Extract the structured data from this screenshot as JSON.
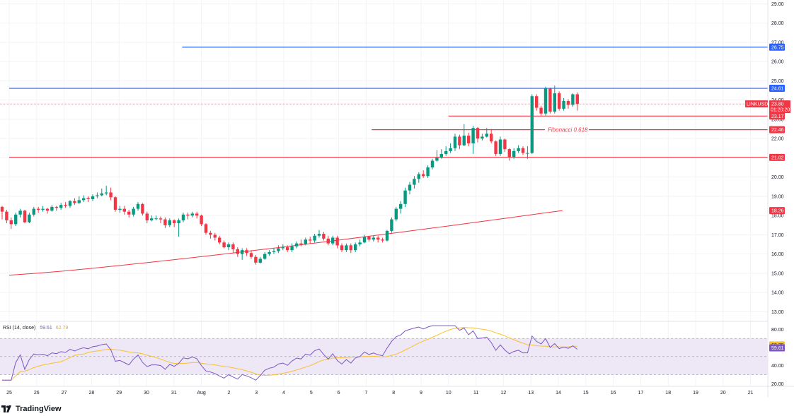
{
  "symbol": "LINKUSDT",
  "branding": "TradingView",
  "colors": {
    "up": "#089981",
    "down": "#f23645",
    "blue_level": "#2962ff",
    "ma": "#f23645",
    "rsi_line": "#7e57c2",
    "rsi_ma": "#fbc02d",
    "rsi_band": "#ede7f6",
    "grid": "#f2f3f5"
  },
  "price_axis": {
    "ticks": [
      "29.00",
      "28.00",
      "27.00",
      "26.00",
      "25.00",
      "24.00",
      "23.00",
      "22.00",
      "21.00",
      "20.00",
      "19.00",
      "18.00",
      "17.00",
      "16.00",
      "15.00",
      "14.00",
      "13.00"
    ]
  },
  "price_badges": [
    {
      "label": "26.75",
      "value": 26.75,
      "color": "#2962ff"
    },
    {
      "label": "24.61",
      "value": 24.61,
      "color": "#2962ff"
    },
    {
      "label": "23.17",
      "value": 23.17,
      "color": "#f23645"
    },
    {
      "label": "22.46",
      "value": 22.46,
      "color": "#f23645"
    },
    {
      "label": "21.02",
      "value": 21.02,
      "color": "#f23645"
    },
    {
      "label": "18.26",
      "value": 18.26,
      "color": "#f23645"
    }
  ],
  "last_price": {
    "symbol": "LINKUSDT",
    "price": "23.80",
    "countdown": "01:20:20",
    "value": 23.8
  },
  "fibonacci_label": "Fibonacci 0.618",
  "time_axis": {
    "labels": [
      "25",
      "26",
      "27",
      "28",
      "29",
      "30",
      "31",
      "Aug",
      "2",
      "3",
      "4",
      "5",
      "6",
      "7",
      "8",
      "9",
      "10",
      "11",
      "12",
      "13",
      "14",
      "15",
      "16",
      "17",
      "18",
      "19",
      "20",
      "21"
    ]
  },
  "rsi": {
    "title": "RSI (14, close)",
    "value": "59.61",
    "ma_value": "62.79",
    "ticks": [
      "80.00",
      "60.00",
      "40.00",
      "20.00"
    ],
    "upper_band": 70,
    "lower_band": 30,
    "middle": 50
  },
  "chart_data": {
    "type": "candlestick",
    "title": "",
    "x_unit": "days",
    "ylim": [
      12.5,
      29.2
    ],
    "levels": [
      {
        "value": 26.75,
        "color": "#2962ff",
        "start_day": 6.3
      },
      {
        "value": 24.61,
        "color": "#2962ff",
        "start_day": 0
      },
      {
        "value": 23.17,
        "color": "#f23645",
        "start_day": 16.0
      },
      {
        "value": 22.46,
        "color": "#f23645",
        "start_day": 13.2,
        "label": "Fibonacci 0.618"
      },
      {
        "value": 21.02,
        "color": "#f23645",
        "start_day": 0
      }
    ],
    "moving_average": {
      "start": {
        "day": 0,
        "value": 14.9
      },
      "end": {
        "day": 20.15,
        "value": 18.26
      }
    },
    "candles": [
      [
        18.45,
        18.2,
        18.5,
        17.8
      ],
      [
        18.2,
        17.75,
        18.3,
        17.6
      ],
      [
        17.75,
        17.55,
        17.9,
        17.3
      ],
      [
        17.55,
        18.05,
        18.15,
        17.45
      ],
      [
        18.05,
        18.25,
        18.35,
        17.9
      ],
      [
        18.25,
        17.65,
        18.3,
        17.6
      ],
      [
        17.65,
        18.05,
        18.15,
        17.6
      ],
      [
        18.05,
        18.35,
        18.45,
        17.95
      ],
      [
        18.35,
        18.3,
        18.45,
        18.15
      ],
      [
        18.3,
        18.35,
        18.5,
        18.2
      ],
      [
        18.35,
        18.25,
        18.4,
        18.1
      ],
      [
        18.25,
        18.45,
        18.55,
        18.2
      ],
      [
        18.45,
        18.4,
        18.5,
        18.25
      ],
      [
        18.4,
        18.55,
        18.65,
        18.3
      ],
      [
        18.55,
        18.5,
        18.7,
        18.4
      ],
      [
        18.5,
        18.75,
        18.8,
        18.4
      ],
      [
        18.75,
        18.65,
        18.9,
        18.55
      ],
      [
        18.65,
        18.8,
        19.0,
        18.6
      ],
      [
        18.8,
        18.9,
        19.05,
        18.7
      ],
      [
        18.9,
        18.85,
        19.0,
        18.7
      ],
      [
        18.85,
        19.0,
        19.1,
        18.75
      ],
      [
        19.0,
        19.05,
        19.2,
        18.9
      ],
      [
        19.05,
        19.15,
        19.4,
        19.0
      ],
      [
        19.15,
        19.2,
        19.55,
        19.05
      ],
      [
        19.2,
        18.95,
        19.45,
        18.8
      ],
      [
        18.95,
        18.3,
        19.0,
        18.2
      ],
      [
        18.3,
        18.35,
        18.5,
        18.15
      ],
      [
        18.35,
        18.2,
        18.5,
        18.05
      ],
      [
        18.2,
        18.05,
        18.3,
        17.9
      ],
      [
        18.05,
        18.35,
        18.45,
        17.95
      ],
      [
        18.35,
        18.6,
        18.7,
        18.25
      ],
      [
        18.6,
        18.1,
        18.65,
        18.0
      ],
      [
        18.1,
        17.75,
        18.2,
        17.6
      ],
      [
        17.75,
        17.85,
        18.0,
        17.7
      ],
      [
        17.85,
        17.85,
        18.0,
        17.75
      ],
      [
        17.85,
        17.8,
        17.95,
        17.6
      ],
      [
        17.8,
        17.5,
        17.9,
        17.35
      ],
      [
        17.5,
        17.75,
        17.85,
        17.4
      ],
      [
        17.75,
        17.6,
        17.8,
        17.4
      ],
      [
        17.6,
        17.75,
        17.85,
        16.9
      ],
      [
        17.75,
        18.05,
        18.15,
        17.65
      ],
      [
        18.05,
        18.0,
        18.15,
        17.8
      ],
      [
        18.0,
        18.1,
        18.2,
        17.9
      ],
      [
        18.1,
        18.0,
        18.2,
        17.85
      ],
      [
        18.0,
        17.55,
        18.05,
        17.45
      ],
      [
        17.55,
        17.1,
        17.6,
        17.0
      ],
      [
        17.1,
        17.0,
        17.2,
        16.8
      ],
      [
        17.0,
        16.85,
        17.1,
        16.7
      ],
      [
        16.85,
        16.6,
        16.95,
        16.5
      ],
      [
        16.6,
        16.35,
        16.7,
        16.3
      ],
      [
        16.35,
        16.5,
        16.6,
        16.2
      ],
      [
        16.5,
        16.25,
        16.6,
        16.05
      ],
      [
        16.25,
        16.0,
        16.35,
        15.85
      ],
      [
        16.0,
        16.2,
        16.3,
        15.7
      ],
      [
        16.2,
        16.05,
        16.3,
        15.9
      ],
      [
        16.05,
        15.85,
        16.2,
        15.75
      ],
      [
        15.85,
        15.55,
        15.95,
        15.45
      ],
      [
        15.55,
        15.75,
        15.85,
        15.5
      ],
      [
        15.75,
        16.0,
        16.1,
        15.7
      ],
      [
        16.0,
        16.1,
        16.2,
        15.9
      ],
      [
        16.1,
        16.15,
        16.3,
        16.0
      ],
      [
        16.15,
        16.3,
        16.45,
        16.05
      ],
      [
        16.3,
        16.35,
        16.5,
        16.2
      ],
      [
        16.35,
        16.2,
        16.45,
        16.1
      ],
      [
        16.2,
        16.4,
        16.55,
        16.1
      ],
      [
        16.4,
        16.55,
        16.65,
        16.3
      ],
      [
        16.55,
        16.5,
        16.75,
        16.4
      ],
      [
        16.5,
        16.75,
        16.85,
        16.45
      ],
      [
        16.75,
        16.7,
        16.9,
        16.55
      ],
      [
        16.7,
        16.95,
        17.05,
        16.6
      ],
      [
        16.95,
        17.05,
        17.25,
        16.85
      ],
      [
        17.05,
        16.8,
        17.15,
        16.7
      ],
      [
        16.8,
        16.55,
        16.95,
        16.45
      ],
      [
        16.55,
        16.85,
        16.95,
        16.45
      ],
      [
        16.85,
        16.45,
        16.95,
        16.3
      ],
      [
        16.45,
        16.2,
        16.55,
        16.1
      ],
      [
        16.2,
        16.45,
        16.55,
        16.1
      ],
      [
        16.45,
        16.2,
        16.55,
        16.05
      ],
      [
        16.2,
        16.5,
        16.6,
        16.1
      ],
      [
        16.5,
        16.6,
        16.75,
        16.4
      ],
      [
        16.6,
        16.9,
        17.0,
        16.55
      ],
      [
        16.9,
        16.75,
        16.95,
        16.65
      ],
      [
        16.75,
        16.85,
        16.95,
        16.65
      ],
      [
        16.85,
        16.75,
        16.95,
        16.6
      ],
      [
        16.75,
        16.7,
        16.85,
        16.6
      ],
      [
        16.7,
        17.2,
        17.25,
        16.65
      ],
      [
        17.2,
        17.8,
        17.9,
        17.1
      ],
      [
        17.8,
        18.35,
        18.45,
        17.7
      ],
      [
        18.35,
        18.6,
        18.75,
        18.1
      ],
      [
        18.6,
        19.3,
        19.45,
        18.45
      ],
      [
        19.3,
        19.6,
        19.75,
        19.1
      ],
      [
        19.6,
        19.9,
        20.05,
        19.4
      ],
      [
        19.9,
        20.15,
        20.25,
        19.7
      ],
      [
        20.15,
        20.05,
        20.35,
        19.95
      ],
      [
        20.05,
        20.5,
        20.6,
        19.95
      ],
      [
        20.5,
        20.85,
        20.95,
        20.4
      ],
      [
        20.85,
        21.0,
        21.4,
        20.8
      ],
      [
        21.0,
        21.2,
        21.45,
        20.95
      ],
      [
        21.2,
        21.35,
        21.6,
        21.1
      ],
      [
        21.35,
        21.5,
        21.75,
        21.25
      ],
      [
        21.5,
        22.1,
        22.25,
        21.35
      ],
      [
        22.1,
        21.65,
        22.2,
        21.45
      ],
      [
        21.65,
        22.15,
        22.75,
        21.6
      ],
      [
        22.15,
        21.75,
        22.3,
        21.6
      ],
      [
        21.75,
        22.55,
        22.65,
        21.2
      ],
      [
        22.55,
        22.0,
        22.6,
        21.8
      ],
      [
        22.0,
        22.1,
        22.25,
        21.9
      ],
      [
        22.1,
        22.25,
        22.55,
        22.05
      ],
      [
        22.25,
        21.85,
        22.5,
        21.75
      ],
      [
        21.85,
        21.2,
        21.9,
        21.1
      ],
      [
        21.2,
        21.95,
        22.1,
        21.1
      ],
      [
        21.95,
        21.45,
        22.0,
        21.3
      ],
      [
        21.45,
        21.05,
        21.5,
        20.85
      ],
      [
        21.05,
        21.35,
        21.5,
        20.95
      ],
      [
        21.35,
        21.5,
        21.65,
        21.25
      ],
      [
        21.5,
        21.25,
        21.6,
        21.15
      ],
      [
        21.25,
        21.25,
        21.6,
        20.95
      ],
      [
        21.25,
        24.2,
        24.3,
        21.2
      ],
      [
        24.2,
        23.6,
        24.3,
        23.45
      ],
      [
        23.6,
        23.3,
        23.7,
        23.2
      ],
      [
        23.3,
        24.6,
        24.7,
        23.2
      ],
      [
        24.6,
        23.4,
        24.65,
        23.3
      ],
      [
        23.4,
        24.35,
        24.75,
        23.3
      ],
      [
        24.35,
        23.55,
        24.45,
        23.45
      ],
      [
        23.55,
        23.95,
        24.1,
        23.45
      ],
      [
        23.95,
        23.75,
        24.05,
        23.55
      ],
      [
        23.75,
        24.3,
        24.35,
        23.65
      ],
      [
        24.3,
        23.8,
        24.4,
        23.45
      ]
    ],
    "rsi_ylim": [
      18,
      88
    ]
  }
}
